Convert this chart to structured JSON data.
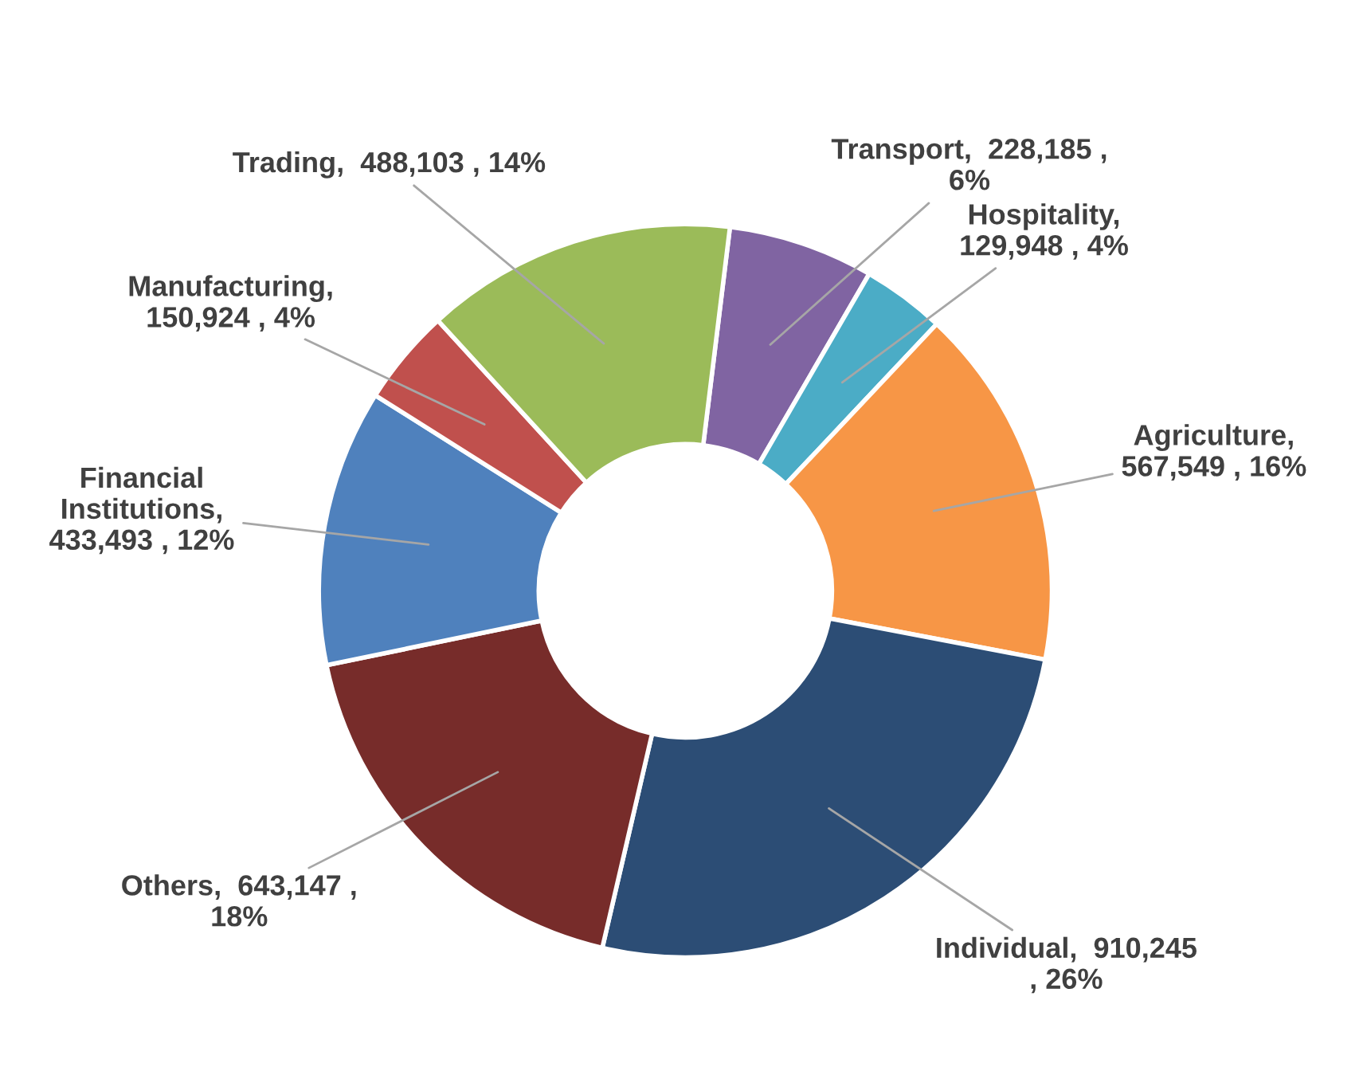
{
  "chart_data": {
    "type": "donut",
    "categories": [
      "Transport",
      "Hospitality",
      "Agriculture",
      "Individual",
      "Others",
      "Financial Institutions",
      "Manufacturing",
      "Trading"
    ],
    "values": [
      228185,
      129948,
      567549,
      910245,
      643147,
      433493,
      150924,
      488103
    ],
    "colors": [
      "#8064a2",
      "#4bacc6",
      "#f79646",
      "#2c4d75",
      "#772c2a",
      "#4f81bd",
      "#c0504d",
      "#9bbb59"
    ],
    "data_labels": true,
    "value_labels": [
      ",  228,185 ,\n6%",
      ",\n129,948 , 4%",
      ",\n567,549 , 16%",
      ",  910,245\n, 26%",
      ",  643,147 ,\n18%",
      ",\n433,493 , 12%",
      ",\n150,924 , 4%",
      ",  488,103 , 14%"
    ],
    "legend": false
  }
}
